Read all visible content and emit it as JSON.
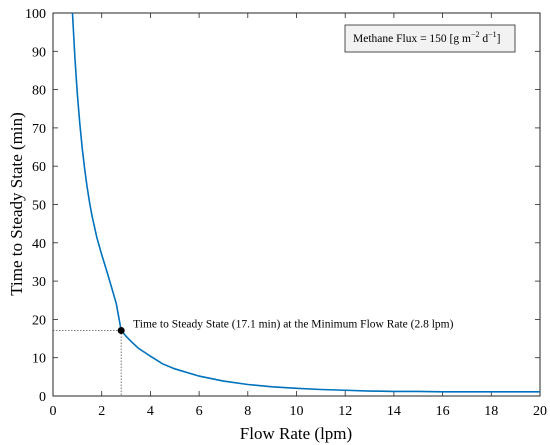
{
  "chart_data": {
    "type": "line",
    "xlabel": "Flow Rate (lpm)",
    "ylabel": "Time to Steady State (min)",
    "xlim": [
      0,
      20
    ],
    "ylim": [
      0,
      100
    ],
    "xticks": [
      0,
      2,
      4,
      6,
      8,
      10,
      12,
      14,
      16,
      18,
      20
    ],
    "yticks": [
      0,
      10,
      20,
      30,
      40,
      50,
      60,
      70,
      80,
      90,
      100
    ],
    "grid": false,
    "legend": {
      "placement": "top-right",
      "text_prefix": "Methane Flux = 150 [g m",
      "sup1": "−2",
      "text_mid": " d",
      "sup2": "−1",
      "text_suffix": "]"
    },
    "series": [
      {
        "color": "#0072bd",
        "x": [
          0.8,
          0.9,
          1.0,
          1.1,
          1.2,
          1.3,
          1.4,
          1.5,
          1.6,
          1.8,
          2.0,
          2.2,
          2.4,
          2.6,
          2.8,
          3.0,
          3.2,
          3.5,
          4.0,
          4.5,
          5.0,
          6.0,
          7.0,
          8.0,
          9.0,
          10.0,
          11.0,
          12.0,
          13.0,
          14.0,
          15.0,
          16.0,
          17.0,
          18.0,
          19.0,
          20.0
        ],
        "y": [
          100,
          88.3,
          78.8,
          71.2,
          64.7,
          59.3,
          54.6,
          50.6,
          47.1,
          41.4,
          36.9,
          32.8,
          28.5,
          24.1,
          17.1,
          15.6,
          14.3,
          12.5,
          10.4,
          8.4,
          7.1,
          5.2,
          3.9,
          3.0,
          2.4,
          2.0,
          1.7,
          1.5,
          1.3,
          1.2,
          1.2,
          1.1,
          1.1,
          1.1,
          1.1,
          1.1
        ]
      }
    ],
    "marker": {
      "x": 2.8,
      "y": 17.1,
      "color": "#000000"
    },
    "annotation": "Time to Steady State (17.1 min) at the Minimum Flow Rate (2.8 lpm)"
  }
}
